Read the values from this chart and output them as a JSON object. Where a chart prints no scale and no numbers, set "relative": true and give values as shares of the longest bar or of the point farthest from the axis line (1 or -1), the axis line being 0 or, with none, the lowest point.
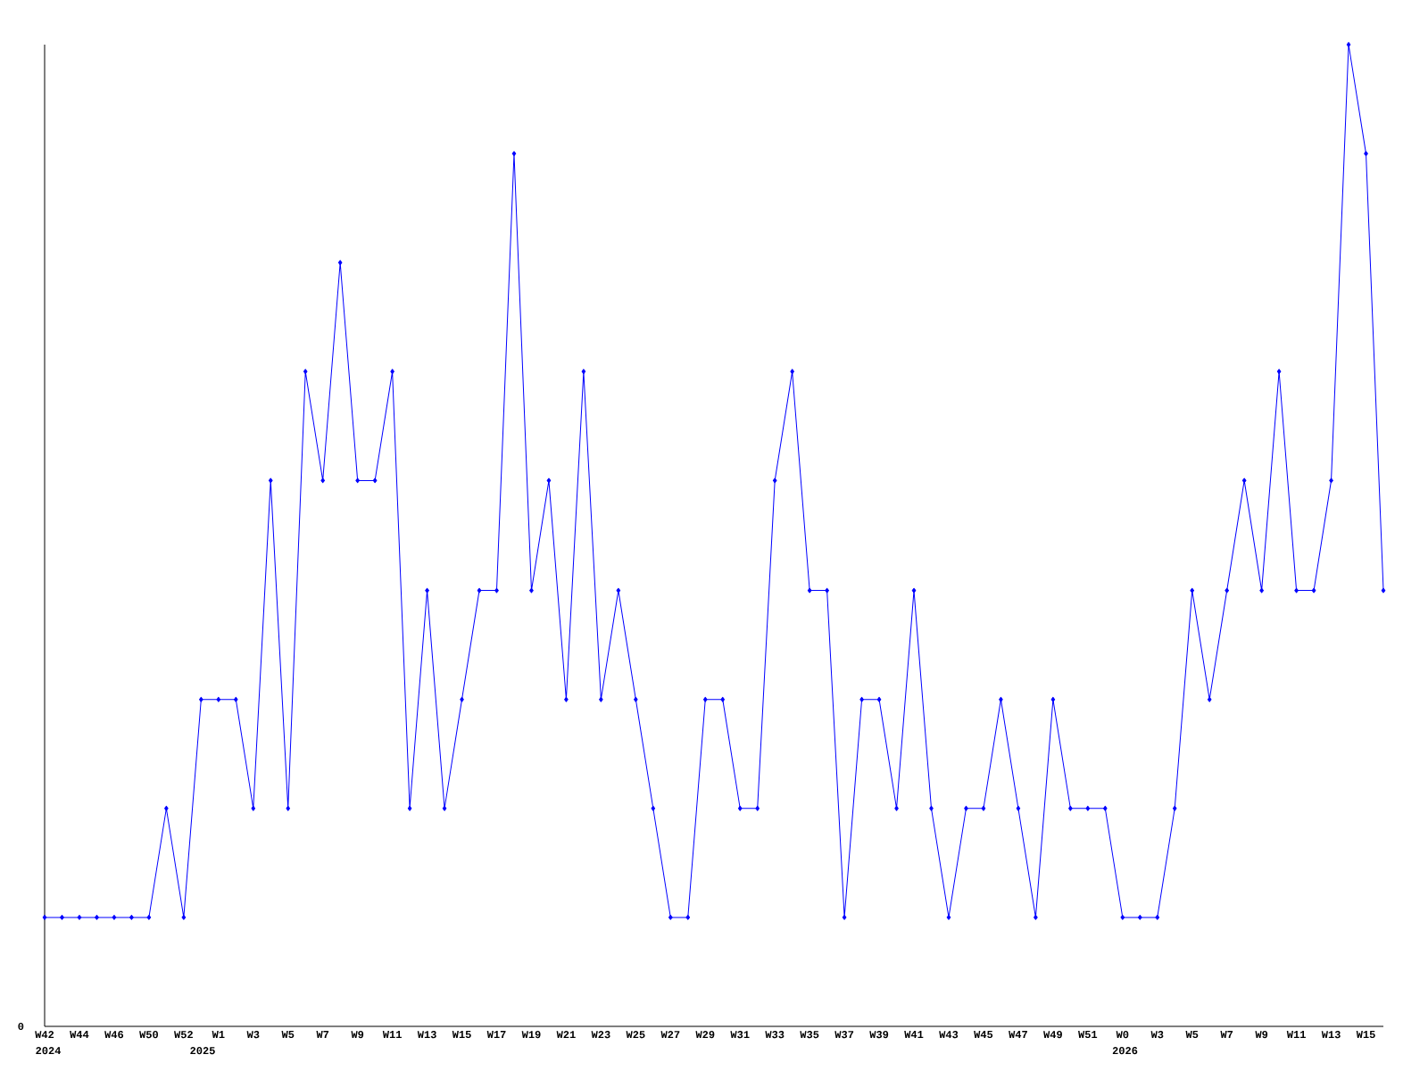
{
  "chart_data": {
    "type": "line",
    "relative": true,
    "color": "#0000ff",
    "marker": "diamond",
    "line_style": "solid",
    "grid": false,
    "categories": [
      "W42",
      null,
      "W44",
      null,
      "W46",
      null,
      "W50",
      null,
      "W52",
      null,
      "W1",
      null,
      "W3",
      null,
      "W5",
      null,
      "W7",
      null,
      "W9",
      null,
      "W11",
      null,
      "W13",
      null,
      "W15",
      null,
      "W17",
      null,
      "W19",
      null,
      "W21",
      null,
      "W23",
      null,
      "W25",
      null,
      "W27",
      null,
      "W29",
      null,
      "W31",
      null,
      "W33",
      null,
      "W35",
      null,
      "W37",
      null,
      "W39",
      null,
      "W41",
      null,
      "W43",
      null,
      "W45",
      null,
      "W47",
      null,
      "W49",
      null,
      "W51",
      null,
      "W0",
      null,
      "W3",
      null,
      "W5",
      null,
      "W7",
      null,
      "W9",
      null,
      "W11",
      null,
      "W13",
      null,
      "W15",
      null
    ],
    "values": [
      0.111,
      0.111,
      0.111,
      0.111,
      0.111,
      0.111,
      0.111,
      0.222,
      0.111,
      0.333,
      0.333,
      0.333,
      0.222,
      0.556,
      0.222,
      0.667,
      0.556,
      0.778,
      0.556,
      0.556,
      0.667,
      0.222,
      0.444,
      0.222,
      0.333,
      0.444,
      0.444,
      0.889,
      0.444,
      0.556,
      0.333,
      0.667,
      0.333,
      0.444,
      0.333,
      0.222,
      0.111,
      0.111,
      0.333,
      0.333,
      0.222,
      0.222,
      0.556,
      0.667,
      0.444,
      0.444,
      0.111,
      0.333,
      0.333,
      0.222,
      0.444,
      0.222,
      0.111,
      0.222,
      0.222,
      0.333,
      0.222,
      0.111,
      0.333,
      0.222,
      0.222,
      0.222,
      0.111,
      0.111,
      0.111,
      0.222,
      0.444,
      0.333,
      0.444,
      0.556,
      0.444,
      0.667,
      0.444,
      0.444,
      0.556,
      1,
      0.889,
      0.444
    ],
    "annotations": [
      "0",
      "2024",
      "2025",
      "2026"
    ]
  }
}
